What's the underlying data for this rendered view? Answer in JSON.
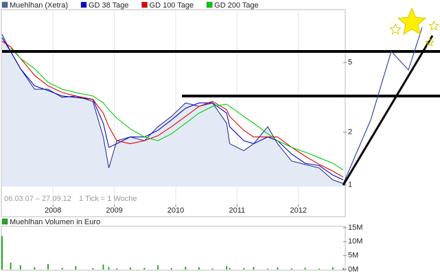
{
  "chart_data": [
    {
      "type": "line",
      "log_y": true,
      "grid": "x",
      "subtitle": "06.03.07 – 27.09.12",
      "note": "1 Tick = 1 Woche",
      "x": [
        2007.17,
        2007.31,
        2007.47,
        2007.7,
        2007.92,
        2008.15,
        2008.37,
        2008.65,
        2008.82,
        2008.91,
        2009.04,
        2009.26,
        2009.49,
        2009.71,
        2009.93,
        2010.16,
        2010.38,
        2010.6,
        2010.83,
        2010.88,
        2011.11,
        2011.27,
        2011.5,
        2011.66,
        2011.89,
        2012.11,
        2012.34,
        2012.56,
        2012.73
      ],
      "xlim": [
        2007.17,
        2012.73
      ],
      "xticks": [
        2008,
        2009,
        2010,
        2011,
        2012
      ],
      "ylim": [
        0.98,
        10.2
      ],
      "yticks": [
        1,
        2,
        5
      ],
      "series": [
        {
          "name": "Muehlhan (Xetra)",
          "color": "#28328c",
          "legend_color": "#4a6896",
          "area_color": "#e3eaf6",
          "values": [
            7.23,
            5.78,
            4.61,
            3.52,
            3.52,
            3.16,
            3.22,
            3.0,
            1.88,
            1.25,
            1.79,
            1.88,
            1.79,
            2.15,
            2.46,
            2.94,
            2.81,
            2.94,
            2.25,
            1.72,
            1.57,
            1.72,
            2.15,
            1.72,
            1.37,
            1.31,
            1.25,
            1.07,
            1.02
          ]
        },
        {
          "name": "GD 38 Tage",
          "color": "#0000cc",
          "values": [
            6.92,
            5.78,
            4.61,
            3.68,
            3.46,
            3.22,
            3.16,
            3.08,
            2.25,
            1.64,
            1.72,
            1.88,
            1.88,
            2.05,
            2.35,
            2.74,
            2.94,
            2.94,
            2.57,
            2.15,
            1.79,
            1.72,
            1.88,
            1.79,
            1.5,
            1.33,
            1.29,
            1.14,
            1.07
          ]
        },
        {
          "name": "GD 100 Tage",
          "color": "#dd0000",
          "values": [
            6.61,
            6.15,
            5.28,
            4.22,
            3.68,
            3.37,
            3.22,
            3.08,
            2.57,
            2.15,
            1.79,
            1.72,
            1.79,
            1.91,
            2.15,
            2.46,
            2.81,
            3.0,
            2.69,
            2.46,
            2.05,
            1.88,
            1.88,
            1.88,
            1.64,
            1.46,
            1.31,
            1.2,
            1.11
          ]
        },
        {
          "name": "GD 200 Tage",
          "color": "#00cc00",
          "values": [
            null,
            6.04,
            5.28,
            4.61,
            3.85,
            3.52,
            3.37,
            3.22,
            2.94,
            2.69,
            2.41,
            2.09,
            1.88,
            1.79,
            1.96,
            2.25,
            2.57,
            2.81,
            2.89,
            2.81,
            2.46,
            2.25,
            1.96,
            1.79,
            1.64,
            1.54,
            1.43,
            1.33,
            1.22
          ]
        }
      ]
    },
    {
      "type": "bar",
      "title": "Muehlhan Volumen in Euro",
      "color": "#22aa22",
      "x": [
        2007.17,
        2007.31,
        2007.47,
        2007.7,
        2007.92,
        2008.15,
        2008.37,
        2008.65,
        2008.82,
        2008.91,
        2009.04,
        2009.26,
        2009.49,
        2009.71,
        2009.93,
        2010.16,
        2010.38,
        2010.6,
        2010.83,
        2010.88,
        2011.11,
        2011.27,
        2011.5,
        2011.66,
        2011.89,
        2012.11,
        2012.34,
        2012.56,
        2012.73
      ],
      "xlim": [
        2007.17,
        2012.73
      ],
      "values": [
        12000000,
        2500000,
        1500000,
        800000,
        2000000,
        600000,
        1200000,
        500000,
        1800000,
        900000,
        400000,
        700000,
        600000,
        1500000,
        500000,
        1000000,
        800000,
        400000,
        1300000,
        600000,
        500000,
        900000,
        300000,
        700000,
        400000,
        600000,
        300000,
        800000,
        500000
      ],
      "ylim": [
        0,
        15000000
      ],
      "yticks": [
        {
          "value": 0,
          "label": "0M"
        },
        {
          "value": 5000000,
          "label": "5M"
        },
        {
          "value": 10000000,
          "label": "10M"
        },
        {
          "value": 15000000,
          "label": "15M"
        }
      ]
    }
  ]
}
